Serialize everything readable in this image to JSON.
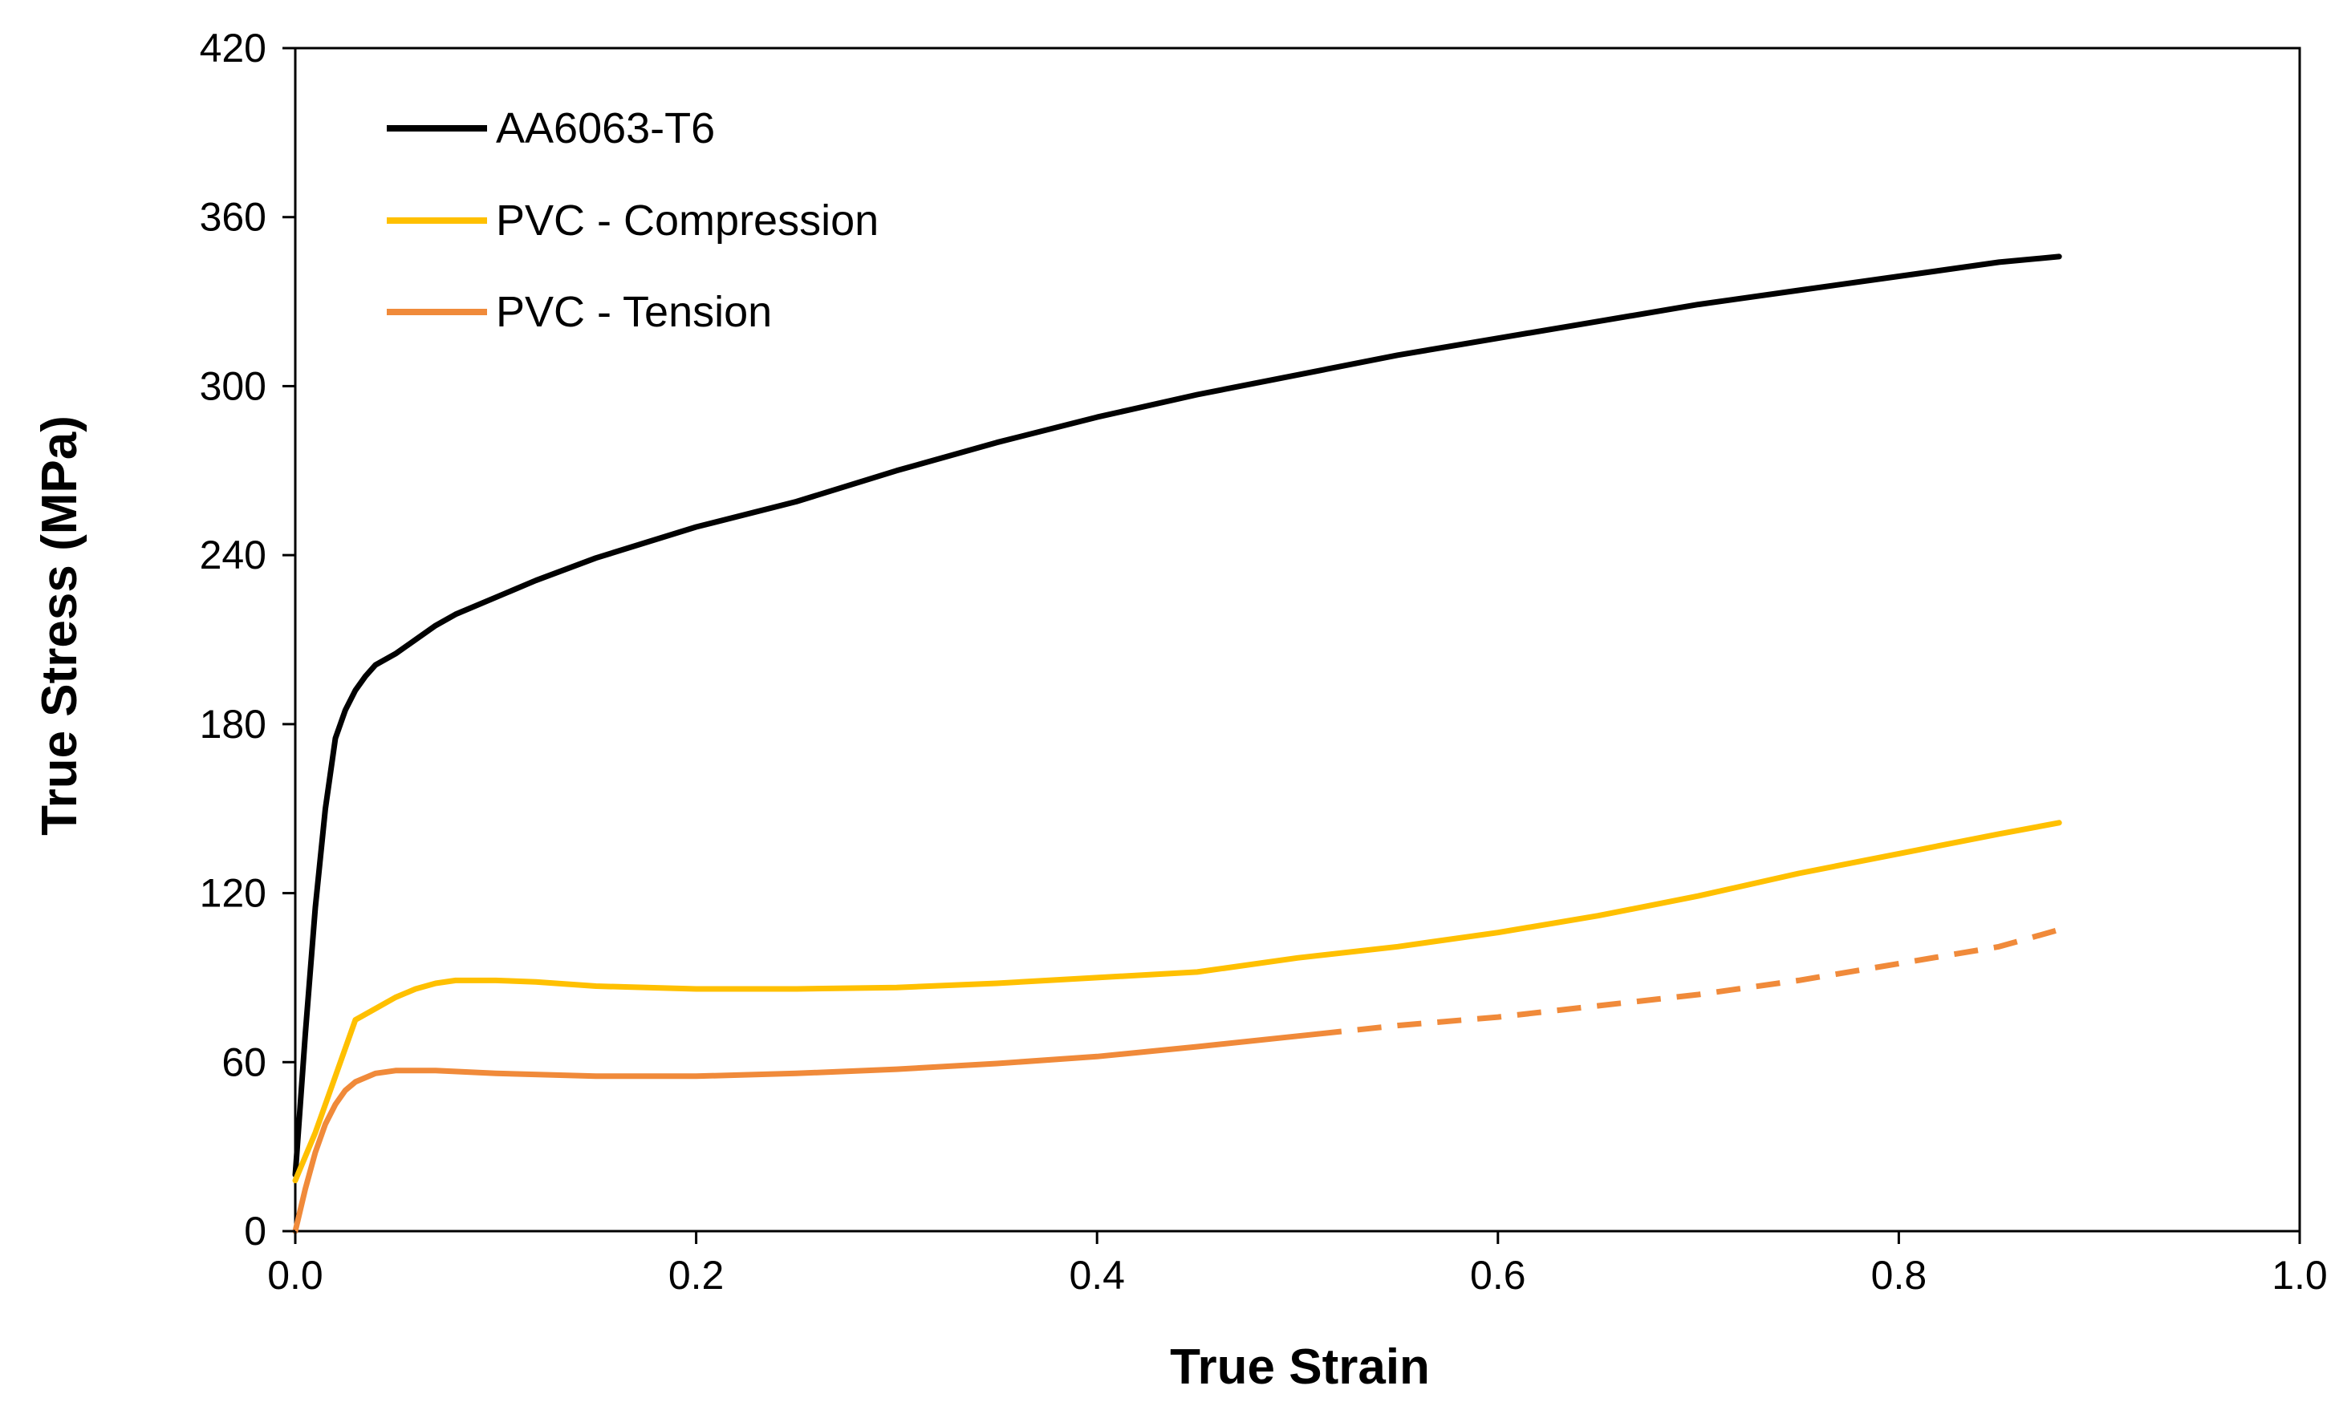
{
  "chart_data": {
    "type": "line",
    "title": "",
    "xlabel": "True Strain",
    "ylabel": "True Stress (MPa)",
    "xlim": [
      0,
      1.0
    ],
    "ylim": [
      0,
      420
    ],
    "xticks": [
      0,
      0.2,
      0.4,
      0.6,
      0.8,
      1.0
    ],
    "xtick_labels": [
      "0.0",
      "0.2",
      "0.4",
      "0.6",
      "0.8",
      "1.0"
    ],
    "yticks": [
      0,
      60,
      120,
      180,
      240,
      300,
      360,
      420
    ],
    "ytick_labels": [
      "0",
      "60",
      "120",
      "180",
      "240",
      "300",
      "360",
      "420"
    ],
    "grid": false,
    "legend_position": "top-left",
    "series": [
      {
        "name": "AA6063-T6",
        "color": "#000000",
        "dashed_after": null,
        "points": [
          [
            0,
            20
          ],
          [
            0.005,
            70
          ],
          [
            0.01,
            115
          ],
          [
            0.015,
            150
          ],
          [
            0.02,
            175
          ],
          [
            0.025,
            185
          ],
          [
            0.03,
            192
          ],
          [
            0.035,
            197
          ],
          [
            0.04,
            201
          ],
          [
            0.05,
            205
          ],
          [
            0.06,
            210
          ],
          [
            0.07,
            215
          ],
          [
            0.08,
            219
          ],
          [
            0.1,
            225
          ],
          [
            0.12,
            231
          ],
          [
            0.15,
            239
          ],
          [
            0.2,
            250
          ],
          [
            0.25,
            259
          ],
          [
            0.3,
            270
          ],
          [
            0.35,
            280
          ],
          [
            0.4,
            289
          ],
          [
            0.45,
            297
          ],
          [
            0.5,
            304
          ],
          [
            0.55,
            311
          ],
          [
            0.6,
            317
          ],
          [
            0.65,
            323
          ],
          [
            0.7,
            329
          ],
          [
            0.75,
            334
          ],
          [
            0.8,
            339
          ],
          [
            0.85,
            344
          ],
          [
            0.88,
            346
          ]
        ]
      },
      {
        "name": "PVC - Compression",
        "color": "#FFC000",
        "dashed_after": null,
        "points": [
          [
            0,
            18
          ],
          [
            0.01,
            35
          ],
          [
            0.02,
            55
          ],
          [
            0.03,
            75
          ],
          [
            0.04,
            79
          ],
          [
            0.05,
            83
          ],
          [
            0.06,
            86
          ],
          [
            0.07,
            88
          ],
          [
            0.08,
            89
          ],
          [
            0.1,
            89
          ],
          [
            0.12,
            88.5
          ],
          [
            0.15,
            87
          ],
          [
            0.2,
            86
          ],
          [
            0.25,
            86
          ],
          [
            0.3,
            86.5
          ],
          [
            0.35,
            88
          ],
          [
            0.4,
            90
          ],
          [
            0.45,
            92
          ],
          [
            0.5,
            97
          ],
          [
            0.55,
            101
          ],
          [
            0.6,
            106
          ],
          [
            0.65,
            112
          ],
          [
            0.7,
            119
          ],
          [
            0.75,
            127
          ],
          [
            0.8,
            134
          ],
          [
            0.85,
            141
          ],
          [
            0.88,
            145
          ]
        ]
      },
      {
        "name": "PVC - Tension",
        "color": "#F08A3A",
        "dashed_after": 0.51,
        "points": [
          [
            0,
            0
          ],
          [
            0.005,
            15
          ],
          [
            0.01,
            28
          ],
          [
            0.015,
            38
          ],
          [
            0.02,
            45
          ],
          [
            0.025,
            50
          ],
          [
            0.03,
            53
          ],
          [
            0.04,
            56
          ],
          [
            0.05,
            57
          ],
          [
            0.07,
            57
          ],
          [
            0.1,
            56
          ],
          [
            0.15,
            55
          ],
          [
            0.2,
            55
          ],
          [
            0.25,
            56
          ],
          [
            0.3,
            57.5
          ],
          [
            0.35,
            59.5
          ],
          [
            0.4,
            62
          ],
          [
            0.45,
            65.5
          ],
          [
            0.51,
            70
          ],
          [
            0.55,
            73
          ],
          [
            0.6,
            76
          ],
          [
            0.65,
            80
          ],
          [
            0.7,
            84
          ],
          [
            0.75,
            89
          ],
          [
            0.8,
            95
          ],
          [
            0.85,
            101
          ],
          [
            0.88,
            107
          ]
        ]
      }
    ]
  }
}
